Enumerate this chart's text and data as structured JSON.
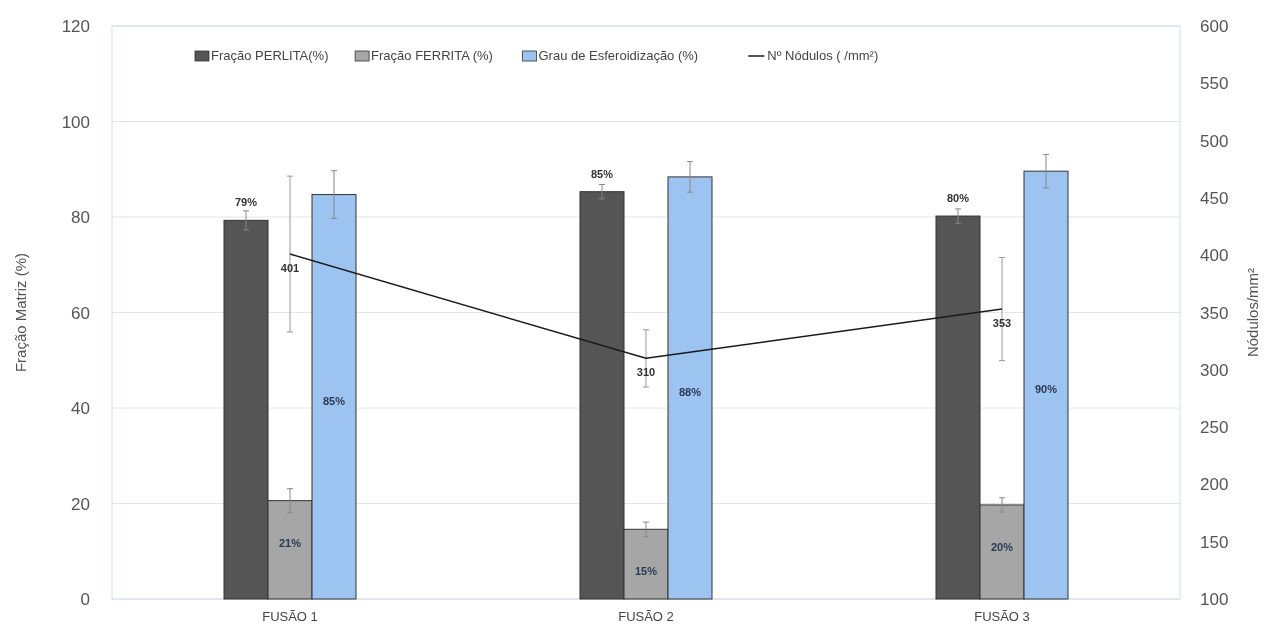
{
  "chart_data": {
    "type": "bar",
    "categories": [
      "FUSÃO 1",
      "FUSÃO 2",
      "FUSÃO 3"
    ],
    "ylabel": "Fração Matriz (%)",
    "y2label": "Nódulos/mm²",
    "ylim": [
      0,
      120
    ],
    "yticks": [
      0,
      20,
      40,
      60,
      80,
      100,
      120
    ],
    "y2lim": [
      100,
      600
    ],
    "y2ticks": [
      100,
      150,
      200,
      250,
      300,
      350,
      400,
      450,
      500,
      550,
      600
    ],
    "grid": "y",
    "legend": "top",
    "series": [
      {
        "name": "Fração PERLITA(%)",
        "color": "#555555",
        "values": [
          79.3,
          85.3,
          80.2
        ],
        "errors": [
          2,
          1.5,
          1.5
        ],
        "value_labels": [
          "79%",
          "85%",
          "80%"
        ]
      },
      {
        "name": "Fração FERRITA (%)",
        "color": "#a6a6a6",
        "values": [
          20.6,
          14.6,
          19.7
        ],
        "errors": [
          2.5,
          1.5,
          1.5
        ],
        "value_labels": [
          "21%",
          "15%",
          "20%"
        ]
      },
      {
        "name": "Grau de Esferoidização (%)",
        "color": "#9dc3f0",
        "values": [
          84.7,
          88.4,
          89.6
        ],
        "errors": [
          5,
          3.2,
          3.5
        ],
        "value_labels": [
          "85%",
          "88%",
          "90%"
        ]
      },
      {
        "name": "Nº Nódulos ( /mm²)",
        "type": "line",
        "axis": "y2",
        "color": "#1a1a1a",
        "values": [
          401,
          310,
          353
        ],
        "errors": [
          68,
          25,
          45
        ],
        "value_labels": [
          "401",
          "310",
          "353"
        ]
      }
    ]
  }
}
